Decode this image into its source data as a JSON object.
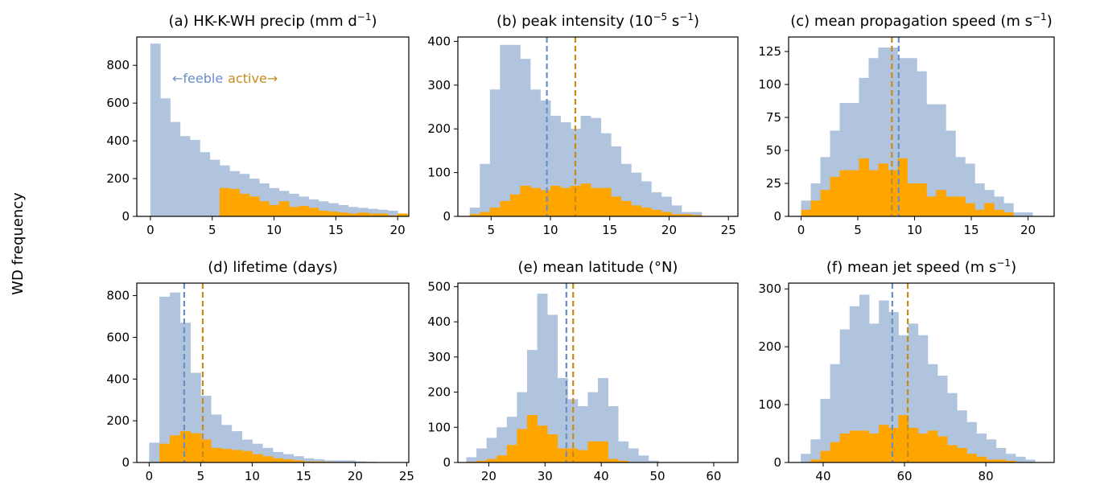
{
  "figure": {
    "ylabel": "WD frequency",
    "colors": {
      "feeble": "#b0c4de",
      "active": "#ffa500",
      "feeble_line": "#6a8fc7",
      "active_line": "#c88a1a"
    }
  },
  "chart_data": [
    {
      "type": "histogram",
      "title_main": "(a) HK-K-WH precip (mm d",
      "title_sup": "−1",
      "title_end": ")",
      "xlim": [
        -1.1,
        20.9
      ],
      "ylim": [
        0,
        950
      ],
      "xticks": [
        0,
        5,
        10,
        15,
        20
      ],
      "yticks": [
        0,
        200,
        400,
        600,
        800
      ],
      "annotation": {
        "feeble": "←feeble",
        "active": "active→"
      },
      "series": [
        {
          "kind": "feeble",
          "x0": 0,
          "width": 0.8,
          "values": [
            915,
            625,
            500,
            425,
            405,
            340,
            300,
            270,
            240,
            225,
            200,
            175,
            150,
            135,
            120,
            105,
            90,
            80,
            70,
            60,
            50,
            45,
            40,
            35,
            30
          ]
        },
        {
          "kind": "active",
          "x0": 5.6,
          "width": 0.8,
          "values": [
            150,
            145,
            120,
            105,
            80,
            60,
            80,
            50,
            55,
            45,
            30,
            25,
            20,
            15,
            20,
            15,
            15,
            5,
            15
          ]
        }
      ],
      "vlines": []
    },
    {
      "type": "histogram",
      "title_main": "(b) peak intensity (10",
      "title_sup": "−5",
      "title_mid": " s",
      "title_sup2": "−1",
      "title_end": ")",
      "xlim": [
        2.2,
        25.8
      ],
      "ylim": [
        0,
        410
      ],
      "xticks": [
        5,
        10,
        15,
        20,
        25
      ],
      "yticks": [
        0,
        100,
        200,
        300,
        400
      ],
      "series": [
        {
          "kind": "feeble",
          "x0": 3.2,
          "width": 0.85,
          "values": [
            20,
            120,
            290,
            392,
            392,
            360,
            290,
            265,
            230,
            215,
            200,
            230,
            225,
            190,
            160,
            120,
            100,
            80,
            55,
            45,
            25,
            10,
            10
          ]
        },
        {
          "kind": "active",
          "x0": 3.2,
          "width": 0.85,
          "values": [
            5,
            10,
            20,
            35,
            50,
            70,
            65,
            60,
            70,
            65,
            70,
            75,
            65,
            65,
            45,
            35,
            25,
            20,
            15,
            10,
            5,
            5,
            3
          ]
        }
      ],
      "vlines": [
        {
          "kind": "feeble",
          "x": 9.7
        },
        {
          "kind": "active",
          "x": 12.1
        }
      ]
    },
    {
      "type": "histogram",
      "title_main": "(c) mean propagation speed (m s",
      "title_sup": "−1",
      "title_end": ")",
      "xlim": [
        -1.1,
        22.3
      ],
      "ylim": [
        0,
        136
      ],
      "xticks": [
        0,
        5,
        10,
        15,
        20
      ],
      "yticks": [
        0,
        25,
        50,
        75,
        100,
        125
      ],
      "series": [
        {
          "kind": "feeble",
          "x0": 0,
          "width": 0.85,
          "values": [
            12,
            25,
            45,
            65,
            86,
            86,
            105,
            120,
            128,
            128,
            120,
            120,
            110,
            85,
            85,
            65,
            45,
            40,
            25,
            20,
            15,
            10,
            3,
            3
          ]
        },
        {
          "kind": "active",
          "x0": 0,
          "width": 0.85,
          "values": [
            5,
            12,
            20,
            30,
            35,
            35,
            44,
            35,
            40,
            35,
            44,
            25,
            25,
            15,
            20,
            15,
            15,
            10,
            5,
            10,
            5,
            3,
            0,
            0
          ]
        }
      ],
      "vlines": [
        {
          "kind": "feeble",
          "x": 8.6
        },
        {
          "kind": "active",
          "x": 8.0
        }
      ]
    },
    {
      "type": "histogram",
      "title_main": "(d) lifetime (days)",
      "xlim": [
        -1.2,
        25.2
      ],
      "ylim": [
        0,
        860
      ],
      "xticks": [
        0,
        5,
        10,
        15,
        20,
        25
      ],
      "yticks": [
        0,
        200,
        400,
        600,
        800
      ],
      "series": [
        {
          "kind": "feeble",
          "x0": 0,
          "width": 1.0,
          "values": [
            95,
            795,
            815,
            670,
            430,
            320,
            230,
            180,
            150,
            110,
            90,
            70,
            50,
            40,
            30,
            20,
            15,
            10,
            10,
            10,
            5,
            3,
            2,
            2
          ]
        },
        {
          "kind": "active",
          "x0": 1.0,
          "width": 1.0,
          "values": [
            90,
            130,
            150,
            140,
            110,
            70,
            65,
            60,
            55,
            40,
            30,
            20,
            15,
            10,
            5,
            5,
            3
          ]
        }
      ],
      "vlines": [
        {
          "kind": "feeble",
          "x": 3.4
        },
        {
          "kind": "active",
          "x": 5.2
        }
      ]
    },
    {
      "type": "histogram",
      "title_main": "(e) mean latitude (°N)",
      "xlim": [
        14.5,
        64.3
      ],
      "ylim": [
        0,
        510
      ],
      "xticks": [
        20,
        30,
        40,
        50,
        60
      ],
      "yticks": [
        0,
        100,
        200,
        300,
        400,
        500
      ],
      "series": [
        {
          "kind": "feeble",
          "x0": 16.0,
          "width": 1.8,
          "values": [
            15,
            40,
            70,
            100,
            130,
            200,
            320,
            480,
            420,
            240,
            180,
            160,
            200,
            240,
            160,
            60,
            40,
            20,
            5
          ]
        },
        {
          "kind": "active",
          "x0": 16.0,
          "width": 1.8,
          "values": [
            2,
            5,
            10,
            20,
            50,
            95,
            135,
            105,
            80,
            40,
            40,
            35,
            60,
            60,
            10,
            5
          ]
        }
      ],
      "vlines": [
        {
          "kind": "feeble",
          "x": 33.8
        },
        {
          "kind": "active",
          "x": 35.0
        }
      ]
    },
    {
      "type": "histogram",
      "title_main": "(f) mean jet speed (m s",
      "title_sup": "−1",
      "title_end": ")",
      "xlim": [
        31.5,
        96.8
      ],
      "ylim": [
        0,
        310
      ],
      "xticks": [
        40,
        60,
        80
      ],
      "yticks": [
        0,
        100,
        200,
        300
      ],
      "series": [
        {
          "kind": "feeble",
          "x0": 34.5,
          "width": 2.4,
          "values": [
            15,
            40,
            110,
            170,
            230,
            270,
            290,
            240,
            280,
            260,
            220,
            240,
            220,
            170,
            150,
            120,
            90,
            70,
            50,
            40,
            25,
            15,
            10,
            5
          ]
        },
        {
          "kind": "active",
          "x0": 34.5,
          "width": 2.4,
          "values": [
            0,
            5,
            20,
            35,
            50,
            55,
            55,
            50,
            65,
            60,
            82,
            60,
            50,
            55,
            45,
            30,
            25,
            15,
            10,
            5,
            5,
            3
          ]
        }
      ],
      "vlines": [
        {
          "kind": "feeble",
          "x": 57.0
        },
        {
          "kind": "active",
          "x": 60.8
        }
      ]
    }
  ]
}
